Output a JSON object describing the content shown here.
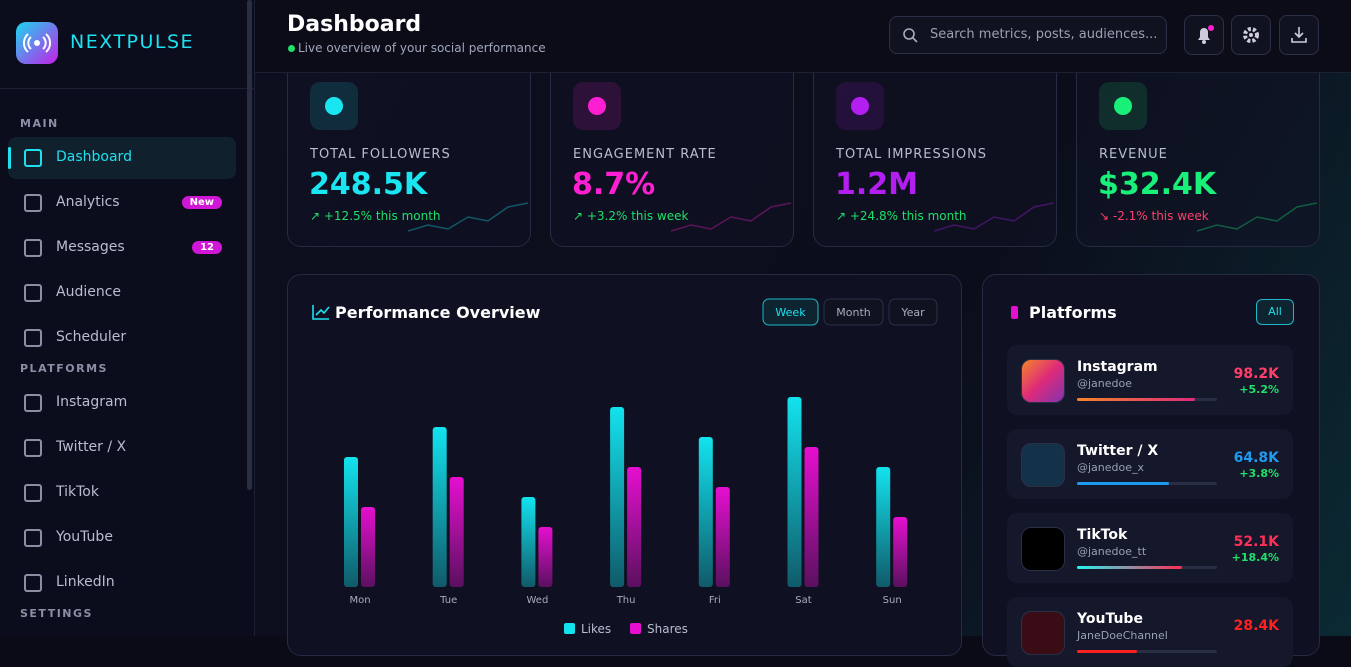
{
  "brand": "NEXTPULSE",
  "sidebar": {
    "sections": [
      {
        "title": "MAIN",
        "items": [
          {
            "label": "Dashboard"
          },
          {
            "label": "Analytics",
            "badge": "New"
          },
          {
            "label": "Messages",
            "badge": "12"
          },
          {
            "label": "Audience"
          },
          {
            "label": "Scheduler"
          }
        ]
      },
      {
        "title": "PLATFORMS",
        "items": [
          {
            "label": "Instagram"
          },
          {
            "label": "Twitter / X"
          },
          {
            "label": "TikTok"
          },
          {
            "label": "YouTube"
          },
          {
            "label": "LinkedIn"
          }
        ]
      },
      {
        "title": "SETTINGS",
        "items": []
      }
    ]
  },
  "header": {
    "title": "Dashboard",
    "subtitle": "Live overview of your social performance",
    "search_placeholder": "Search metrics, posts, audiences..."
  },
  "stats": [
    {
      "label": "TOTAL FOLLOWERS",
      "value": "248.5K",
      "change": "↗ +12.5% this month",
      "color": "#19e6f0"
    },
    {
      "label": "ENGAGEMENT RATE",
      "value": "8.7%",
      "change": "↗ +3.2% this week",
      "color": "#ff1fd2"
    },
    {
      "label": "TOTAL IMPRESSIONS",
      "value": "1.2M",
      "change": "↗ +24.8% this month",
      "color": "#b21ff0"
    },
    {
      "label": "REVENUE",
      "value": "$32.4K",
      "change": "↘ -2.1% this week",
      "color": "#19f07a"
    }
  ],
  "chart_data": {
    "type": "bar",
    "title": "Performance Overview",
    "tabs": [
      "Week",
      "Month",
      "Year"
    ],
    "categories": [
      "Mon",
      "Tue",
      "Wed",
      "Thu",
      "Fri",
      "Sat",
      "Sun"
    ],
    "series": [
      {
        "name": "Likes",
        "color": "#12e3ee",
        "values": [
          130,
          160,
          90,
          180,
          150,
          190,
          120
        ]
      },
      {
        "name": "Shares",
        "color": "#e60fd0",
        "values": [
          80,
          110,
          60,
          120,
          100,
          140,
          70
        ]
      }
    ]
  },
  "platforms": {
    "title": "Platforms",
    "filter": "All",
    "items": [
      {
        "name": "Instagram",
        "handle": "@janedoe",
        "value": "98.2K",
        "change": "+5.2%"
      },
      {
        "name": "Twitter / X",
        "handle": "@janedoe_x",
        "value": "64.8K",
        "change": "+3.8%"
      },
      {
        "name": "TikTok",
        "handle": "@janedoe_tt",
        "value": "52.1K",
        "change": "+18.4%"
      },
      {
        "name": "YouTube",
        "handle": "JaneDoeChannel",
        "value": "28.4K",
        "change": ""
      }
    ]
  }
}
